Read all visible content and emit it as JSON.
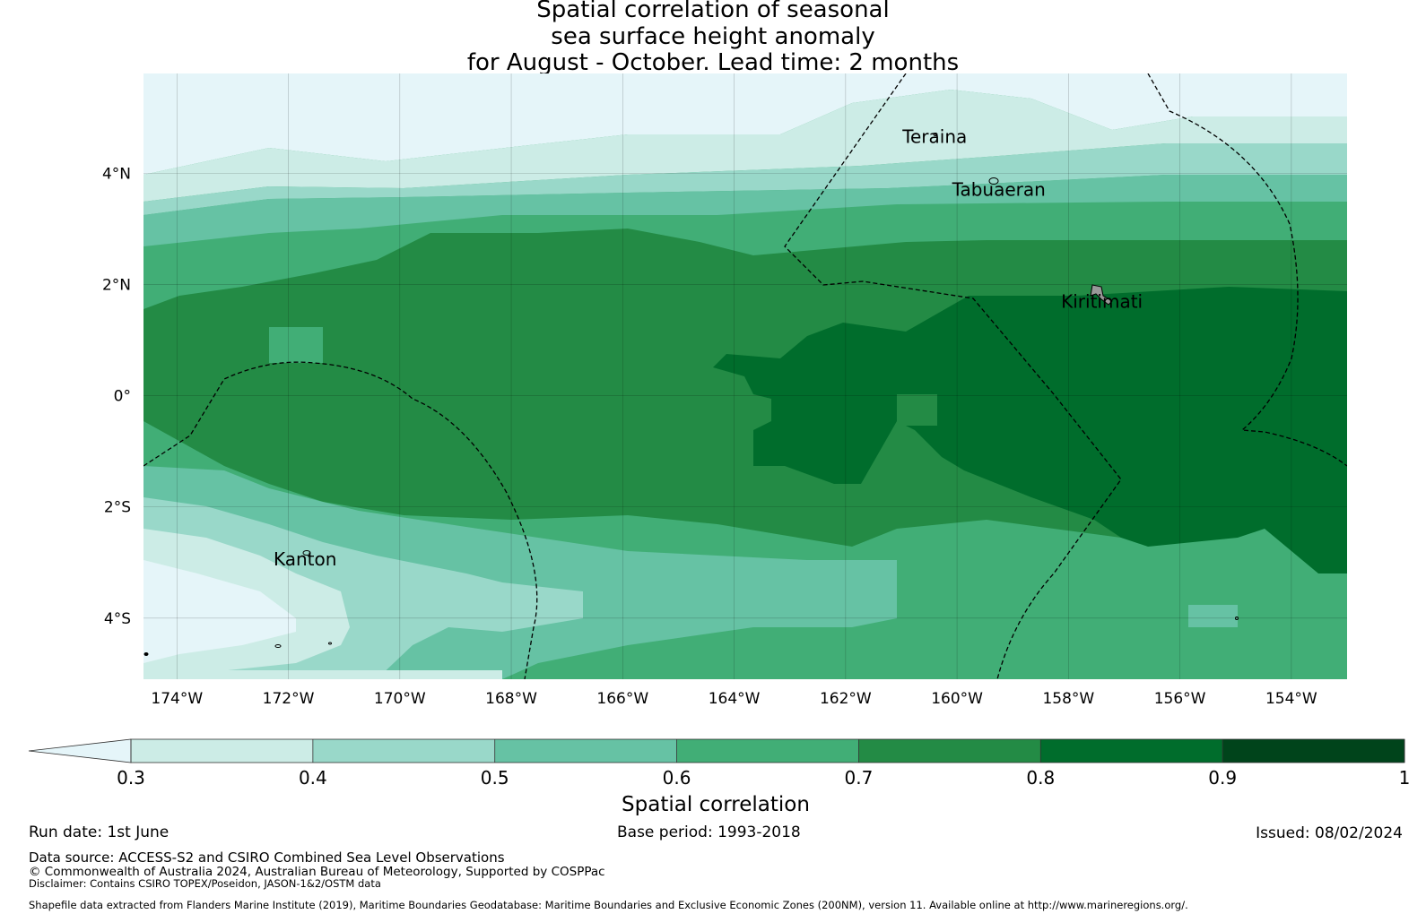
{
  "title": {
    "line1": "Spatial correlation of seasonal",
    "line2": "sea surface height anomaly",
    "line3": "for August - October. Lead time: 2 months"
  },
  "map": {
    "lon_range": [
      -174.6,
      -153.0
    ],
    "lat_range": [
      -5.1,
      5.8
    ],
    "lon_ticks": [
      {
        "value": -174,
        "label": "174°W"
      },
      {
        "value": -172,
        "label": "172°W"
      },
      {
        "value": -170,
        "label": "170°W"
      },
      {
        "value": -168,
        "label": "168°W"
      },
      {
        "value": -166,
        "label": "166°W"
      },
      {
        "value": -164,
        "label": "164°W"
      },
      {
        "value": -162,
        "label": "162°W"
      },
      {
        "value": -160,
        "label": "160°W"
      },
      {
        "value": -158,
        "label": "158°W"
      },
      {
        "value": -156,
        "label": "156°W"
      },
      {
        "value": -154,
        "label": "154°W"
      }
    ],
    "lat_ticks": [
      {
        "value": 4,
        "label": "4°N"
      },
      {
        "value": 2,
        "label": "2°N"
      },
      {
        "value": 0,
        "label": "0°"
      },
      {
        "value": -2,
        "label": "2°S"
      },
      {
        "value": -4,
        "label": "4°S"
      }
    ],
    "places": [
      {
        "name": "Teraina",
        "lon": -160.4,
        "lat": 4.55
      },
      {
        "name": "Tabuaeran",
        "lon": -159.25,
        "lat": 3.6
      },
      {
        "name": "Kiritimati",
        "lon": -157.4,
        "lat": 1.58
      },
      {
        "name": "Kanton",
        "lon": -171.7,
        "lat": -3.05
      }
    ],
    "field_value_unit": "Spatial correlation"
  },
  "colorbar": {
    "label": "Spatial correlation",
    "ticks": [
      "0.3",
      "0.4",
      "0.5",
      "0.6",
      "0.7",
      "0.8",
      "0.9",
      "1"
    ],
    "colors": {
      "under": "#e5f5f9",
      "0.3-0.4": "#ccece6",
      "0.4-0.5": "#99d8c9",
      "0.5-0.6": "#66c2a4",
      "0.6-0.7": "#41ae76",
      "0.7-0.8": "#238b45",
      "0.8-0.9": "#006d2c",
      "0.9-1": "#00441b"
    }
  },
  "footer": {
    "run_date": "Run date: 1st June",
    "base_period": "Base period: 1993-2018",
    "issued": "Issued: 08/02/2024",
    "data_source": "Data source: ACCESS-S2 and CSIRO Combined Sea Level Observations",
    "copyright": "© Commonwealth of Australia 2024, Australian Bureau of Meteorology, Supported by COSPPac",
    "disclaimer": "Disclaimer: Contains CSIRO TOPEX/Poseidon, JASON-1&2/OSTM data",
    "shapefile": "Shapefile data extracted from Flanders Marine Institute (2019), Maritime Boundaries Geodatabase: Maritime Boundaries and Exclusive Economic Zones (200NM), version 11. Available online at http://www.marineregions.org/."
  }
}
